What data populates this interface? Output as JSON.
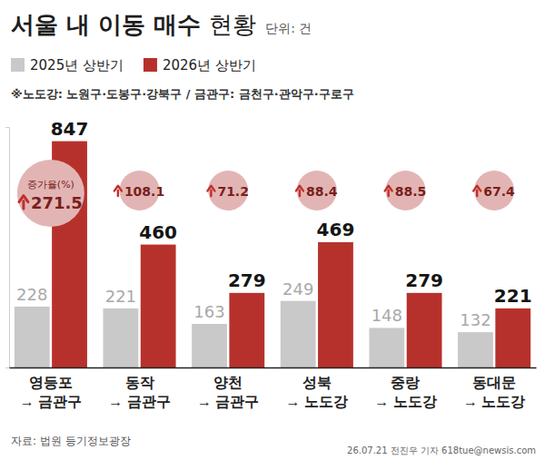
{
  "chart_data": {
    "type": "bar",
    "title": "서울 내 이동 매수 현황",
    "subtitle": "단위: 건",
    "note": "※노도강: 노원구·도봉구·강북구 / 금관구: 금천구·관악구·구로구",
    "categories": [
      "영등포\n→ 금관구",
      "동작\n→ 금관구",
      "양천\n→ 금관구",
      "성북\n→ 노도강",
      "중랑\n→ 노도강",
      "동대문\n→ 노도강"
    ],
    "series": [
      {
        "name": "2025년 상반기",
        "color": "#c9c9c9",
        "values": [
          228,
          221,
          163,
          249,
          148,
          132
        ]
      },
      {
        "name": "2026년 상반기",
        "color": "#b7312c",
        "values": [
          847,
          460,
          279,
          469,
          279,
          221
        ]
      }
    ],
    "growth_rate": {
      "label": "증가율(%)",
      "values": [
        271.5,
        108.1,
        71.2,
        88.4,
        88.5,
        67.4
      ]
    },
    "ylim": [
      0,
      900
    ],
    "yticks": [
      0
    ],
    "tick_labels": "x",
    "data_labels": true,
    "legend": "top-left",
    "source": "자료: 법원 등기정보광장",
    "credit": "26.07.21 전진우 기자 618tue@newsis.com"
  }
}
